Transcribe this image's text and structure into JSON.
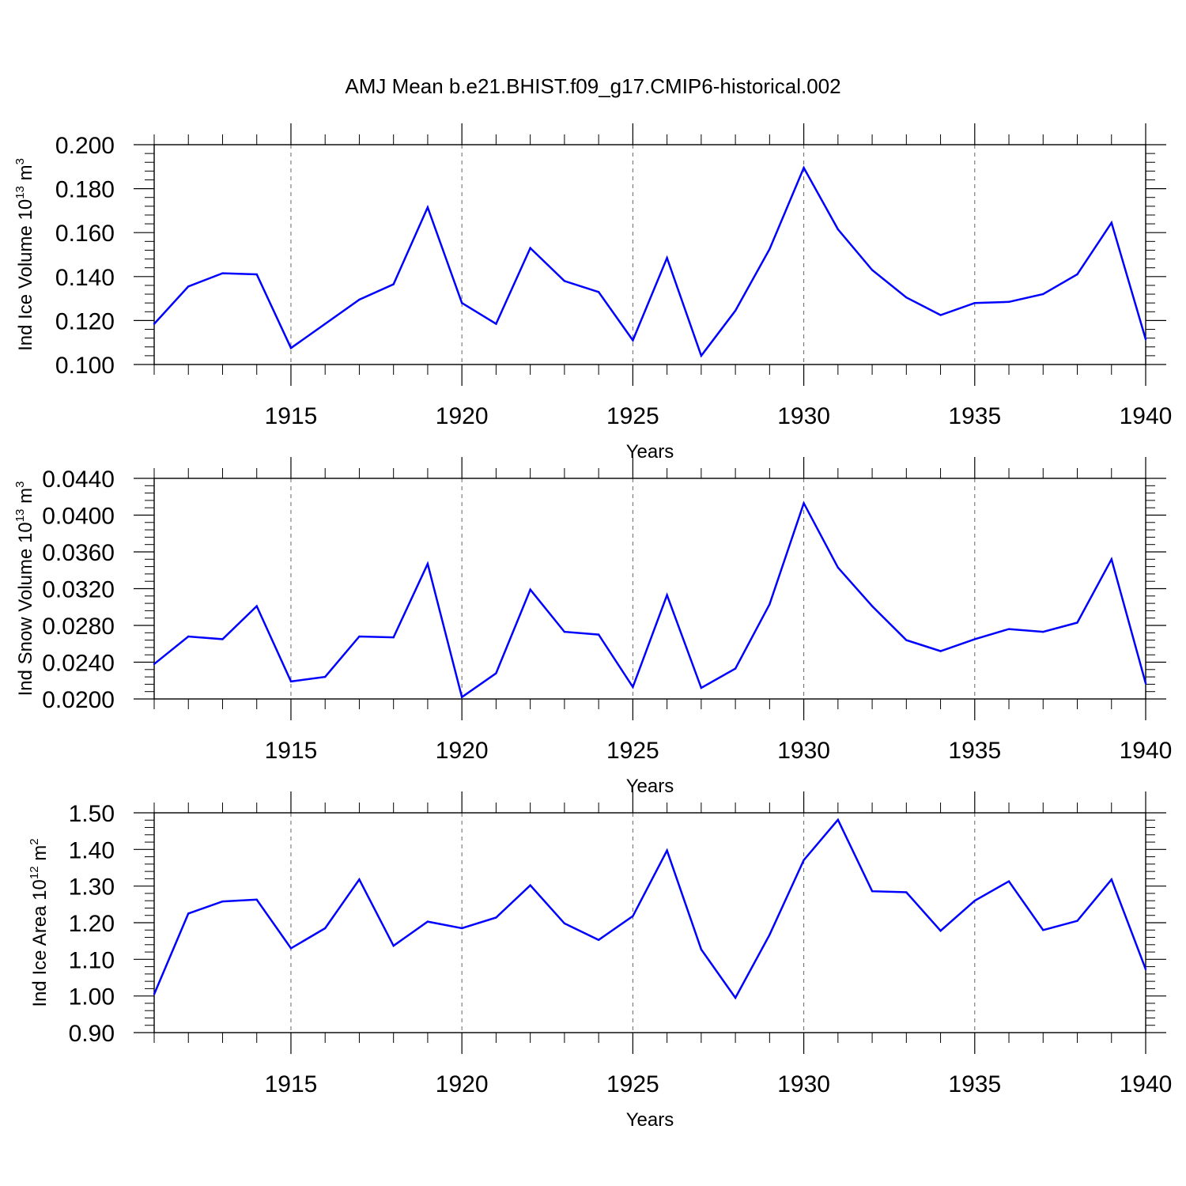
{
  "page": {
    "title": "AMJ Mean b.e21.BHIST.f09_g17.CMIP6-historical.002"
  },
  "line_color": "#0000ff",
  "chart_data": [
    {
      "type": "line",
      "title": "",
      "xlabel": "Years",
      "ylabel": "Ind Ice Volume 10",
      "ylabel_exp": "13",
      "ylabel_unit": " m",
      "ylabel_unit_exp": "3",
      "xlim": [
        1911,
        1940
      ],
      "ylim": [
        0.1,
        0.2
      ],
      "yticks": [
        0.1,
        0.12,
        0.14,
        0.16,
        0.18,
        0.2
      ],
      "ytick_labels": [
        "0.100",
        "0.120",
        "0.140",
        "0.160",
        "0.180",
        "0.200"
      ],
      "xticks": [
        1915,
        1920,
        1925,
        1930,
        1935,
        1940
      ],
      "xtick_labels": [
        "1915",
        "1920",
        "1925",
        "1930",
        "1935",
        "1940"
      ],
      "grid": "dashed vertical at major x ticks",
      "x": [
        1911,
        1912,
        1913,
        1914,
        1915,
        1916,
        1917,
        1918,
        1919,
        1920,
        1921,
        1922,
        1923,
        1924,
        1925,
        1926,
        1927,
        1928,
        1929,
        1930,
        1931,
        1932,
        1933,
        1934,
        1935,
        1936,
        1937,
        1938,
        1939,
        1940
      ],
      "series": [
        {
          "values": [
            0.1185,
            0.1355,
            0.1415,
            0.141,
            0.1075,
            0.1185,
            0.1295,
            0.1365,
            0.1715,
            0.128,
            0.1185,
            0.153,
            0.138,
            0.133,
            0.111,
            0.1485,
            0.104,
            0.1245,
            0.1525,
            0.1895,
            0.1615,
            0.143,
            0.1305,
            0.1225,
            0.128,
            0.1285,
            0.132,
            0.141,
            0.1645,
            0.1115
          ]
        }
      ]
    },
    {
      "type": "line",
      "title": "",
      "xlabel": "Years",
      "ylabel": "Ind Snow Volume 10",
      "ylabel_exp": "13",
      "ylabel_unit": " m",
      "ylabel_unit_exp": "3",
      "xlim": [
        1911,
        1940
      ],
      "ylim": [
        0.02,
        0.044
      ],
      "yticks": [
        0.02,
        0.024,
        0.028,
        0.032,
        0.036,
        0.04,
        0.044
      ],
      "ytick_labels": [
        "0.0200",
        "0.0240",
        "0.0280",
        "0.0320",
        "0.0360",
        "0.0400",
        "0.0440"
      ],
      "xticks": [
        1915,
        1920,
        1925,
        1930,
        1935,
        1940
      ],
      "xtick_labels": [
        "1915",
        "1920",
        "1925",
        "1930",
        "1935",
        "1940"
      ],
      "grid": "dashed vertical at major x ticks",
      "x": [
        1911,
        1912,
        1913,
        1914,
        1915,
        1916,
        1917,
        1918,
        1919,
        1920,
        1921,
        1922,
        1923,
        1924,
        1925,
        1926,
        1927,
        1928,
        1929,
        1930,
        1931,
        1932,
        1933,
        1934,
        1935,
        1936,
        1937,
        1938,
        1939,
        1940
      ],
      "series": [
        {
          "values": [
            0.0238,
            0.0268,
            0.0265,
            0.0301,
            0.0219,
            0.0224,
            0.0268,
            0.0267,
            0.0347,
            0.0202,
            0.0228,
            0.0319,
            0.0273,
            0.027,
            0.0213,
            0.0313,
            0.0212,
            0.0233,
            0.0303,
            0.0413,
            0.0343,
            0.0301,
            0.0264,
            0.0252,
            0.0265,
            0.0276,
            0.0273,
            0.0283,
            0.0352,
            0.0217
          ]
        }
      ]
    },
    {
      "type": "line",
      "title": "",
      "xlabel": "Years",
      "ylabel": "Ind Ice Area 10",
      "ylabel_exp": "12",
      "ylabel_unit": " m",
      "ylabel_unit_exp": "2",
      "xlim": [
        1911,
        1940
      ],
      "ylim": [
        0.9,
        1.5
      ],
      "yticks": [
        0.9,
        1.0,
        1.1,
        1.2,
        1.3,
        1.4,
        1.5
      ],
      "ytick_labels": [
        "0.90",
        "1.00",
        "1.10",
        "1.20",
        "1.30",
        "1.40",
        "1.50"
      ],
      "xticks": [
        1915,
        1920,
        1925,
        1930,
        1935,
        1940
      ],
      "xtick_labels": [
        "1915",
        "1920",
        "1925",
        "1930",
        "1935",
        "1940"
      ],
      "grid": "dashed vertical at major x ticks",
      "x": [
        1911,
        1912,
        1913,
        1914,
        1915,
        1916,
        1917,
        1918,
        1919,
        1920,
        1921,
        1922,
        1923,
        1924,
        1925,
        1926,
        1927,
        1928,
        1929,
        1930,
        1931,
        1932,
        1933,
        1934,
        1935,
        1936,
        1937,
        1938,
        1939,
        1940
      ],
      "series": [
        {
          "values": [
            1.005,
            1.225,
            1.258,
            1.263,
            1.13,
            1.185,
            1.318,
            1.137,
            1.203,
            1.185,
            1.214,
            1.302,
            1.198,
            1.153,
            1.218,
            1.397,
            1.127,
            0.995,
            1.167,
            1.371,
            1.481,
            1.286,
            1.283,
            1.178,
            1.26,
            1.313,
            1.18,
            1.205,
            1.318,
            1.073
          ]
        }
      ]
    }
  ]
}
